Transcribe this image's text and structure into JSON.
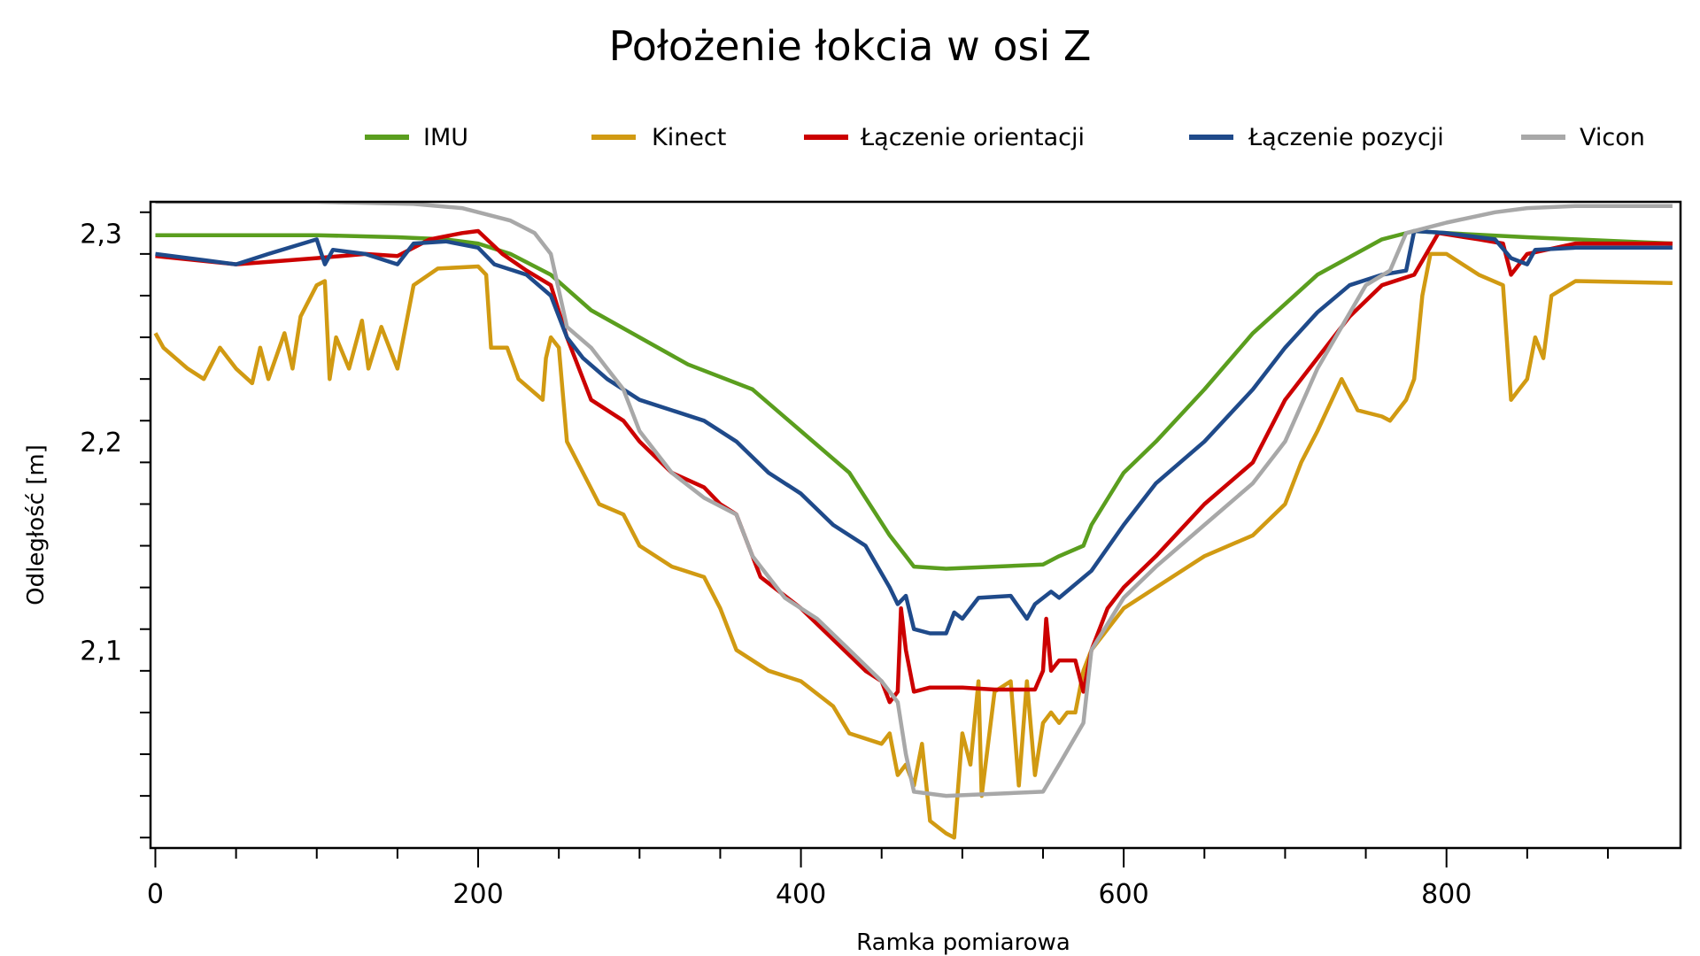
{
  "chart_data": {
    "type": "line",
    "title": "Położenie łokcia w osi Z",
    "xlabel": "Ramka pomiarowa",
    "ylabel": "Odległość [m]",
    "xlim": [
      -3,
      945
    ],
    "ylim": [
      2.005,
      2.315
    ],
    "x_ticks": [
      0,
      200,
      400,
      600,
      800
    ],
    "x_tick_labels": [
      "0",
      "200",
      "400",
      "600",
      "800"
    ],
    "y_ticks": [
      2.1,
      2.2,
      2.3
    ],
    "y_tick_labels": [
      "2,1",
      "2,2",
      "2,3"
    ],
    "grid": false,
    "legend_position": "top",
    "series": [
      {
        "name": "IMU",
        "color": "#5a9e1e",
        "points": [
          [
            0,
            2.299
          ],
          [
            100,
            2.299
          ],
          [
            150,
            2.298
          ],
          [
            180,
            2.297
          ],
          [
            200,
            2.295
          ],
          [
            220,
            2.29
          ],
          [
            245,
            2.28
          ],
          [
            270,
            2.263
          ],
          [
            300,
            2.25
          ],
          [
            330,
            2.237
          ],
          [
            370,
            2.225
          ],
          [
            400,
            2.205
          ],
          [
            430,
            2.185
          ],
          [
            455,
            2.155
          ],
          [
            465,
            2.145
          ],
          [
            470,
            2.14
          ],
          [
            490,
            2.139
          ],
          [
            550,
            2.141
          ],
          [
            560,
            2.145
          ],
          [
            575,
            2.15
          ],
          [
            580,
            2.16
          ],
          [
            600,
            2.185
          ],
          [
            620,
            2.2
          ],
          [
            650,
            2.225
          ],
          [
            680,
            2.252
          ],
          [
            720,
            2.28
          ],
          [
            760,
            2.297
          ],
          [
            780,
            2.301
          ],
          [
            800,
            2.3
          ],
          [
            850,
            2.298
          ],
          [
            880,
            2.297
          ],
          [
            940,
            2.295
          ]
        ]
      },
      {
        "name": "Kinect",
        "color": "#d19a12",
        "points": [
          [
            0,
            2.252
          ],
          [
            5,
            2.245
          ],
          [
            20,
            2.235
          ],
          [
            30,
            2.23
          ],
          [
            40,
            2.245
          ],
          [
            50,
            2.235
          ],
          [
            60,
            2.228
          ],
          [
            65,
            2.245
          ],
          [
            70,
            2.23
          ],
          [
            80,
            2.252
          ],
          [
            85,
            2.235
          ],
          [
            90,
            2.26
          ],
          [
            100,
            2.275
          ],
          [
            105,
            2.277
          ],
          [
            108,
            2.23
          ],
          [
            112,
            2.25
          ],
          [
            120,
            2.235
          ],
          [
            128,
            2.258
          ],
          [
            132,
            2.235
          ],
          [
            140,
            2.255
          ],
          [
            150,
            2.235
          ],
          [
            160,
            2.275
          ],
          [
            175,
            2.283
          ],
          [
            200,
            2.284
          ],
          [
            205,
            2.28
          ],
          [
            208,
            2.245
          ],
          [
            218,
            2.245
          ],
          [
            225,
            2.23
          ],
          [
            240,
            2.22
          ],
          [
            242,
            2.24
          ],
          [
            245,
            2.25
          ],
          [
            250,
            2.245
          ],
          [
            255,
            2.2
          ],
          [
            265,
            2.185
          ],
          [
            275,
            2.17
          ],
          [
            290,
            2.165
          ],
          [
            300,
            2.15
          ],
          [
            320,
            2.14
          ],
          [
            340,
            2.135
          ],
          [
            350,
            2.12
          ],
          [
            360,
            2.1
          ],
          [
            380,
            2.09
          ],
          [
            400,
            2.085
          ],
          [
            420,
            2.073
          ],
          [
            430,
            2.06
          ],
          [
            450,
            2.055
          ],
          [
            455,
            2.06
          ],
          [
            460,
            2.04
          ],
          [
            465,
            2.045
          ],
          [
            470,
            2.035
          ],
          [
            475,
            2.055
          ],
          [
            480,
            2.018
          ],
          [
            485,
            2.015
          ],
          [
            490,
            2.012
          ],
          [
            495,
            2.01
          ],
          [
            500,
            2.06
          ],
          [
            505,
            2.045
          ],
          [
            510,
            2.085
          ],
          [
            512,
            2.03
          ],
          [
            520,
            2.08
          ],
          [
            530,
            2.085
          ],
          [
            535,
            2.035
          ],
          [
            540,
            2.085
          ],
          [
            545,
            2.04
          ],
          [
            550,
            2.065
          ],
          [
            555,
            2.07
          ],
          [
            560,
            2.065
          ],
          [
            565,
            2.07
          ],
          [
            570,
            2.07
          ],
          [
            575,
            2.09
          ],
          [
            580,
            2.1
          ],
          [
            600,
            2.12
          ],
          [
            620,
            2.13
          ],
          [
            650,
            2.145
          ],
          [
            680,
            2.155
          ],
          [
            700,
            2.17
          ],
          [
            710,
            2.19
          ],
          [
            720,
            2.205
          ],
          [
            735,
            2.23
          ],
          [
            745,
            2.215
          ],
          [
            760,
            2.212
          ],
          [
            765,
            2.21
          ],
          [
            775,
            2.22
          ],
          [
            780,
            2.23
          ],
          [
            785,
            2.27
          ],
          [
            790,
            2.29
          ],
          [
            800,
            2.29
          ],
          [
            820,
            2.28
          ],
          [
            835,
            2.275
          ],
          [
            840,
            2.22
          ],
          [
            845,
            2.225
          ],
          [
            850,
            2.23
          ],
          [
            855,
            2.25
          ],
          [
            860,
            2.24
          ],
          [
            865,
            2.27
          ],
          [
            880,
            2.277
          ],
          [
            940,
            2.276
          ]
        ]
      },
      {
        "name": "Łączenie orientacji",
        "color": "#cc0000",
        "points": [
          [
            0,
            2.289
          ],
          [
            50,
            2.285
          ],
          [
            100,
            2.288
          ],
          [
            130,
            2.29
          ],
          [
            150,
            2.289
          ],
          [
            170,
            2.297
          ],
          [
            190,
            2.3
          ],
          [
            200,
            2.301
          ],
          [
            215,
            2.29
          ],
          [
            230,
            2.282
          ],
          [
            245,
            2.275
          ],
          [
            255,
            2.25
          ],
          [
            270,
            2.22
          ],
          [
            290,
            2.21
          ],
          [
            300,
            2.2
          ],
          [
            320,
            2.185
          ],
          [
            340,
            2.178
          ],
          [
            350,
            2.17
          ],
          [
            360,
            2.165
          ],
          [
            375,
            2.135
          ],
          [
            400,
            2.12
          ],
          [
            420,
            2.105
          ],
          [
            440,
            2.09
          ],
          [
            450,
            2.085
          ],
          [
            455,
            2.075
          ],
          [
            460,
            2.08
          ],
          [
            462,
            2.12
          ],
          [
            465,
            2.1
          ],
          [
            470,
            2.08
          ],
          [
            480,
            2.082
          ],
          [
            500,
            2.082
          ],
          [
            520,
            2.081
          ],
          [
            545,
            2.081
          ],
          [
            550,
            2.09
          ],
          [
            552,
            2.115
          ],
          [
            555,
            2.09
          ],
          [
            560,
            2.095
          ],
          [
            570,
            2.095
          ],
          [
            575,
            2.08
          ],
          [
            580,
            2.1
          ],
          [
            590,
            2.12
          ],
          [
            600,
            2.13
          ],
          [
            620,
            2.145
          ],
          [
            650,
            2.17
          ],
          [
            680,
            2.19
          ],
          [
            700,
            2.22
          ],
          [
            720,
            2.24
          ],
          [
            740,
            2.26
          ],
          [
            760,
            2.275
          ],
          [
            780,
            2.28
          ],
          [
            795,
            2.3
          ],
          [
            820,
            2.297
          ],
          [
            835,
            2.295
          ],
          [
            840,
            2.28
          ],
          [
            850,
            2.29
          ],
          [
            880,
            2.295
          ],
          [
            940,
            2.295
          ]
        ]
      },
      {
        "name": "Łączenie pozycji",
        "color": "#1f4a8a",
        "points": [
          [
            0,
            2.29
          ],
          [
            30,
            2.287
          ],
          [
            50,
            2.285
          ],
          [
            70,
            2.29
          ],
          [
            100,
            2.297
          ],
          [
            105,
            2.285
          ],
          [
            110,
            2.292
          ],
          [
            130,
            2.29
          ],
          [
            150,
            2.285
          ],
          [
            160,
            2.295
          ],
          [
            180,
            2.296
          ],
          [
            200,
            2.293
          ],
          [
            210,
            2.285
          ],
          [
            230,
            2.28
          ],
          [
            245,
            2.27
          ],
          [
            255,
            2.25
          ],
          [
            265,
            2.24
          ],
          [
            280,
            2.23
          ],
          [
            300,
            2.22
          ],
          [
            320,
            2.215
          ],
          [
            340,
            2.21
          ],
          [
            360,
            2.2
          ],
          [
            380,
            2.185
          ],
          [
            400,
            2.175
          ],
          [
            420,
            2.16
          ],
          [
            440,
            2.15
          ],
          [
            455,
            2.13
          ],
          [
            460,
            2.122
          ],
          [
            465,
            2.126
          ],
          [
            470,
            2.11
          ],
          [
            480,
            2.108
          ],
          [
            490,
            2.108
          ],
          [
            495,
            2.118
          ],
          [
            500,
            2.115
          ],
          [
            510,
            2.125
          ],
          [
            530,
            2.126
          ],
          [
            540,
            2.115
          ],
          [
            545,
            2.122
          ],
          [
            555,
            2.128
          ],
          [
            560,
            2.125
          ],
          [
            580,
            2.138
          ],
          [
            600,
            2.16
          ],
          [
            620,
            2.18
          ],
          [
            650,
            2.2
          ],
          [
            680,
            2.225
          ],
          [
            700,
            2.245
          ],
          [
            720,
            2.262
          ],
          [
            740,
            2.275
          ],
          [
            760,
            2.28
          ],
          [
            775,
            2.282
          ],
          [
            780,
            2.301
          ],
          [
            800,
            2.3
          ],
          [
            830,
            2.297
          ],
          [
            840,
            2.288
          ],
          [
            850,
            2.285
          ],
          [
            855,
            2.292
          ],
          [
            880,
            2.293
          ],
          [
            940,
            2.293
          ]
        ]
      },
      {
        "name": "Vicon",
        "color": "#a8a8a8",
        "points": [
          [
            0,
            2.315
          ],
          [
            100,
            2.315
          ],
          [
            160,
            2.314
          ],
          [
            190,
            2.312
          ],
          [
            220,
            2.306
          ],
          [
            235,
            2.3
          ],
          [
            245,
            2.29
          ],
          [
            255,
            2.255
          ],
          [
            270,
            2.245
          ],
          [
            280,
            2.235
          ],
          [
            290,
            2.225
          ],
          [
            300,
            2.205
          ],
          [
            320,
            2.185
          ],
          [
            340,
            2.173
          ],
          [
            360,
            2.165
          ],
          [
            370,
            2.145
          ],
          [
            390,
            2.125
          ],
          [
            410,
            2.115
          ],
          [
            430,
            2.1
          ],
          [
            450,
            2.085
          ],
          [
            460,
            2.075
          ],
          [
            465,
            2.05
          ],
          [
            470,
            2.032
          ],
          [
            490,
            2.03
          ],
          [
            550,
            2.032
          ],
          [
            560,
            2.045
          ],
          [
            575,
            2.065
          ],
          [
            580,
            2.1
          ],
          [
            600,
            2.125
          ],
          [
            620,
            2.14
          ],
          [
            650,
            2.16
          ],
          [
            680,
            2.18
          ],
          [
            700,
            2.2
          ],
          [
            720,
            2.235
          ],
          [
            750,
            2.275
          ],
          [
            765,
            2.282
          ],
          [
            775,
            2.3
          ],
          [
            800,
            2.305
          ],
          [
            830,
            2.31
          ],
          [
            850,
            2.312
          ],
          [
            880,
            2.313
          ],
          [
            940,
            2.313
          ]
        ]
      }
    ]
  }
}
